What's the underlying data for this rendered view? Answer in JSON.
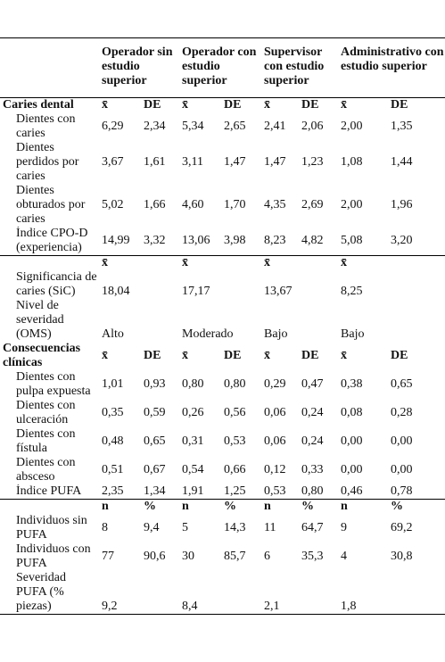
{
  "header": {
    "columns": [
      "Operador sin estudio superior",
      "Operador con estudio superior",
      "Supervisor con estudio superior",
      "Administrativo con estudio superior"
    ]
  },
  "sections": [
    {
      "title": "Caries dental",
      "stats": [
        "x̄",
        "DE",
        "x̄",
        "DE",
        "x̄",
        "DE",
        "x̄",
        "DE"
      ],
      "rows": [
        {
          "label": "Dientes con caries",
          "values": [
            "6,29",
            "2,34",
            "5,34",
            "2,65",
            "2,41",
            "2,06",
            "2,00",
            "1,35"
          ]
        },
        {
          "label": "Dientes perdidos por caries",
          "values": [
            "3,67",
            "1,61",
            "3,11",
            "1,47",
            "1,47",
            "1,23",
            "1,08",
            "1,44"
          ]
        },
        {
          "label": "Dientes obturados por caries",
          "values": [
            "5,02",
            "1,66",
            "4,60",
            "1,70",
            "4,35",
            "2,69",
            "2,00",
            "1,96"
          ]
        },
        {
          "label": "Índice CPO-D (experiencia)",
          "values": [
            "14,99",
            "3,32",
            "13,06",
            "3,98",
            "8,23",
            "4,82",
            "5,08",
            "3,20"
          ]
        }
      ]
    },
    {
      "stats": [
        "x̄",
        "x̄",
        "x̄",
        "x̄"
      ],
      "rows": [
        {
          "label": "Significancia de caries (SiC)",
          "values": [
            "18,04",
            "17,17",
            "13,67",
            "8,25"
          ]
        },
        {
          "label": "Nivel de severidad (OMS)",
          "values": [
            "Alto",
            "Moderado",
            "Bajo",
            "Bajo"
          ]
        }
      ]
    },
    {
      "title": "Consecuencias clínicas",
      "stats": [
        "x̄",
        "DE",
        "x̄",
        "DE",
        "x̄",
        "DE",
        "x̄",
        "DE"
      ],
      "rows": [
        {
          "label": "Dientes con pulpa expuesta",
          "values": [
            "1,01",
            "0,93",
            "0,80",
            "0,80",
            "0,29",
            "0,47",
            "0,38",
            "0,65"
          ]
        },
        {
          "label": "Dientes con ulceración",
          "values": [
            "0,35",
            "0,59",
            "0,26",
            "0,56",
            "0,06",
            "0,24",
            "0,08",
            "0,28"
          ]
        },
        {
          "label": "Dientes con fístula",
          "values": [
            "0,48",
            "0,65",
            "0,31",
            "0,53",
            "0,06",
            "0,24",
            "0,00",
            "0,00"
          ]
        },
        {
          "label": "Dientes con absceso",
          "values": [
            "0,51",
            "0,67",
            "0,54",
            "0,66",
            "0,12",
            "0,33",
            "0,00",
            "0,00"
          ]
        },
        {
          "label": "Índice PUFA",
          "values": [
            "2,35",
            "1,34",
            "1,91",
            "1,25",
            "0,53",
            "0,80",
            "0,46",
            "0,78"
          ]
        }
      ]
    },
    {
      "stats": [
        "n",
        "%",
        "n",
        "%",
        "n",
        "%",
        "n",
        "%"
      ],
      "rows": [
        {
          "label": "Individuos sin PUFA",
          "values": [
            "8",
            "9,4",
            "5",
            "14,3",
            "11",
            "64,7",
            "9",
            "69,2"
          ]
        },
        {
          "label": "Individuos con PUFA",
          "values": [
            "77",
            "90,6",
            "30",
            "85,7",
            "6",
            "35,3",
            "4",
            "30,8"
          ]
        },
        {
          "label": "Severidad PUFA (% piezas)",
          "values": [
            "9,2",
            "8,4",
            "2,1",
            "1,8"
          ]
        }
      ]
    }
  ]
}
